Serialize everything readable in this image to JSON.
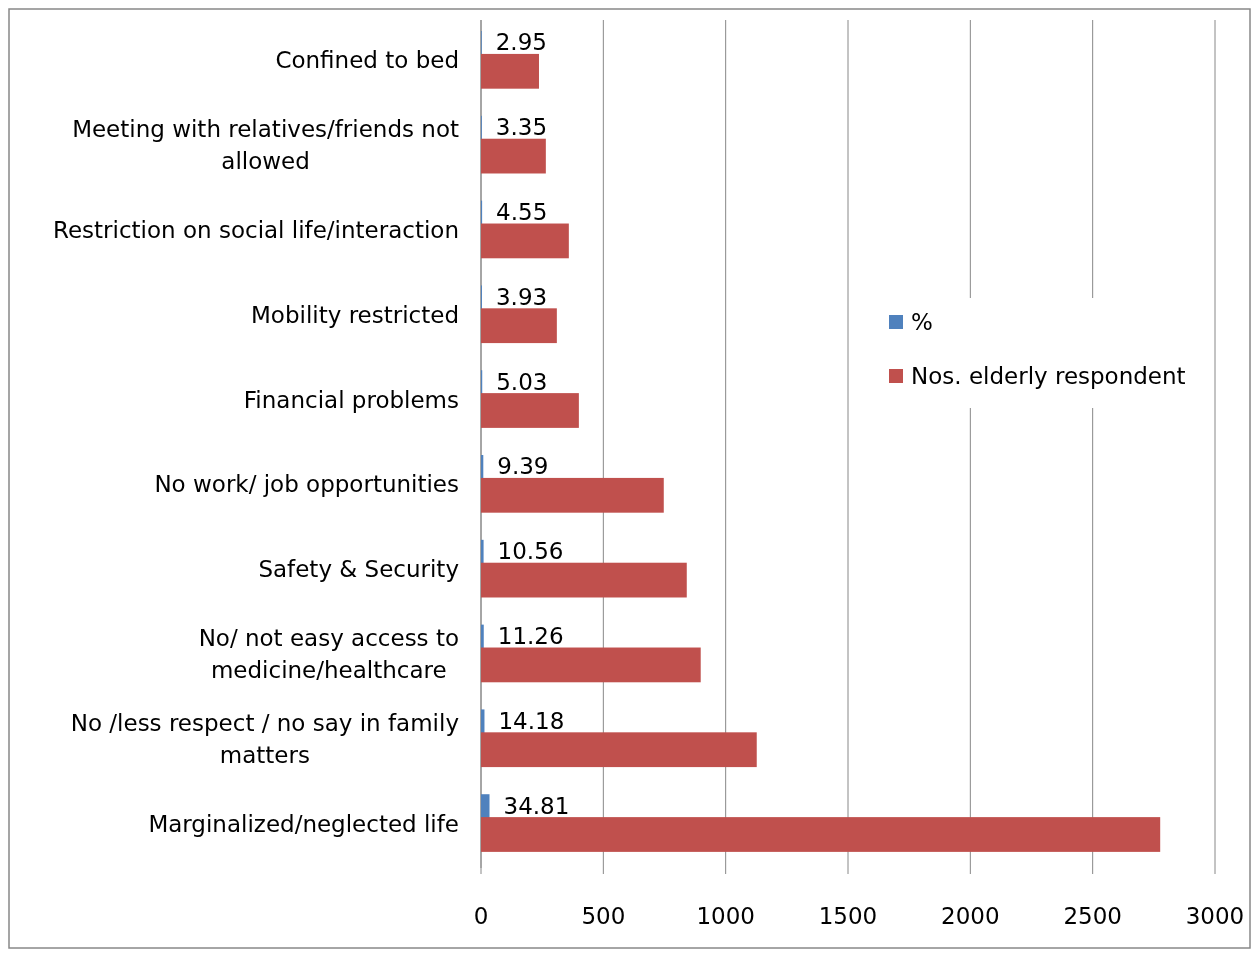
{
  "chart_data": {
    "type": "bar",
    "orientation": "horizontal",
    "categories": [
      "Confined to bed",
      "Meeting with relatives/friends not allowed",
      "Restriction on social life/interaction",
      "Mobility restricted",
      "Financial problems",
      "No work/ job opportunities",
      "Safety & Security",
      "No/ not easy access to medicine/healthcare",
      "No /less respect / no say in family matters",
      "Marginalized/neglected life"
    ],
    "series": [
      {
        "name": "%",
        "color": "#4f81bd",
        "values": [
          2.95,
          3.35,
          4.55,
          3.93,
          5.03,
          9.39,
          10.56,
          11.26,
          14.18,
          34.81
        ],
        "value_labels": [
          "2.95",
          "3.35",
          "4.55",
          "3.93",
          "5.03",
          "9.39",
          "10.56",
          "11.26",
          "14.18",
          "34.81"
        ]
      },
      {
        "name": "Nos. elderly respondent",
        "color": "#c0504d",
        "values": [
          237,
          265,
          359,
          310,
          400,
          747,
          841,
          898,
          1127,
          2776
        ]
      }
    ],
    "xlim": [
      0,
      3000
    ],
    "xticks": [
      0,
      500,
      1000,
      1500,
      2000,
      2500,
      3000
    ],
    "grid": "x",
    "legend": "right"
  }
}
